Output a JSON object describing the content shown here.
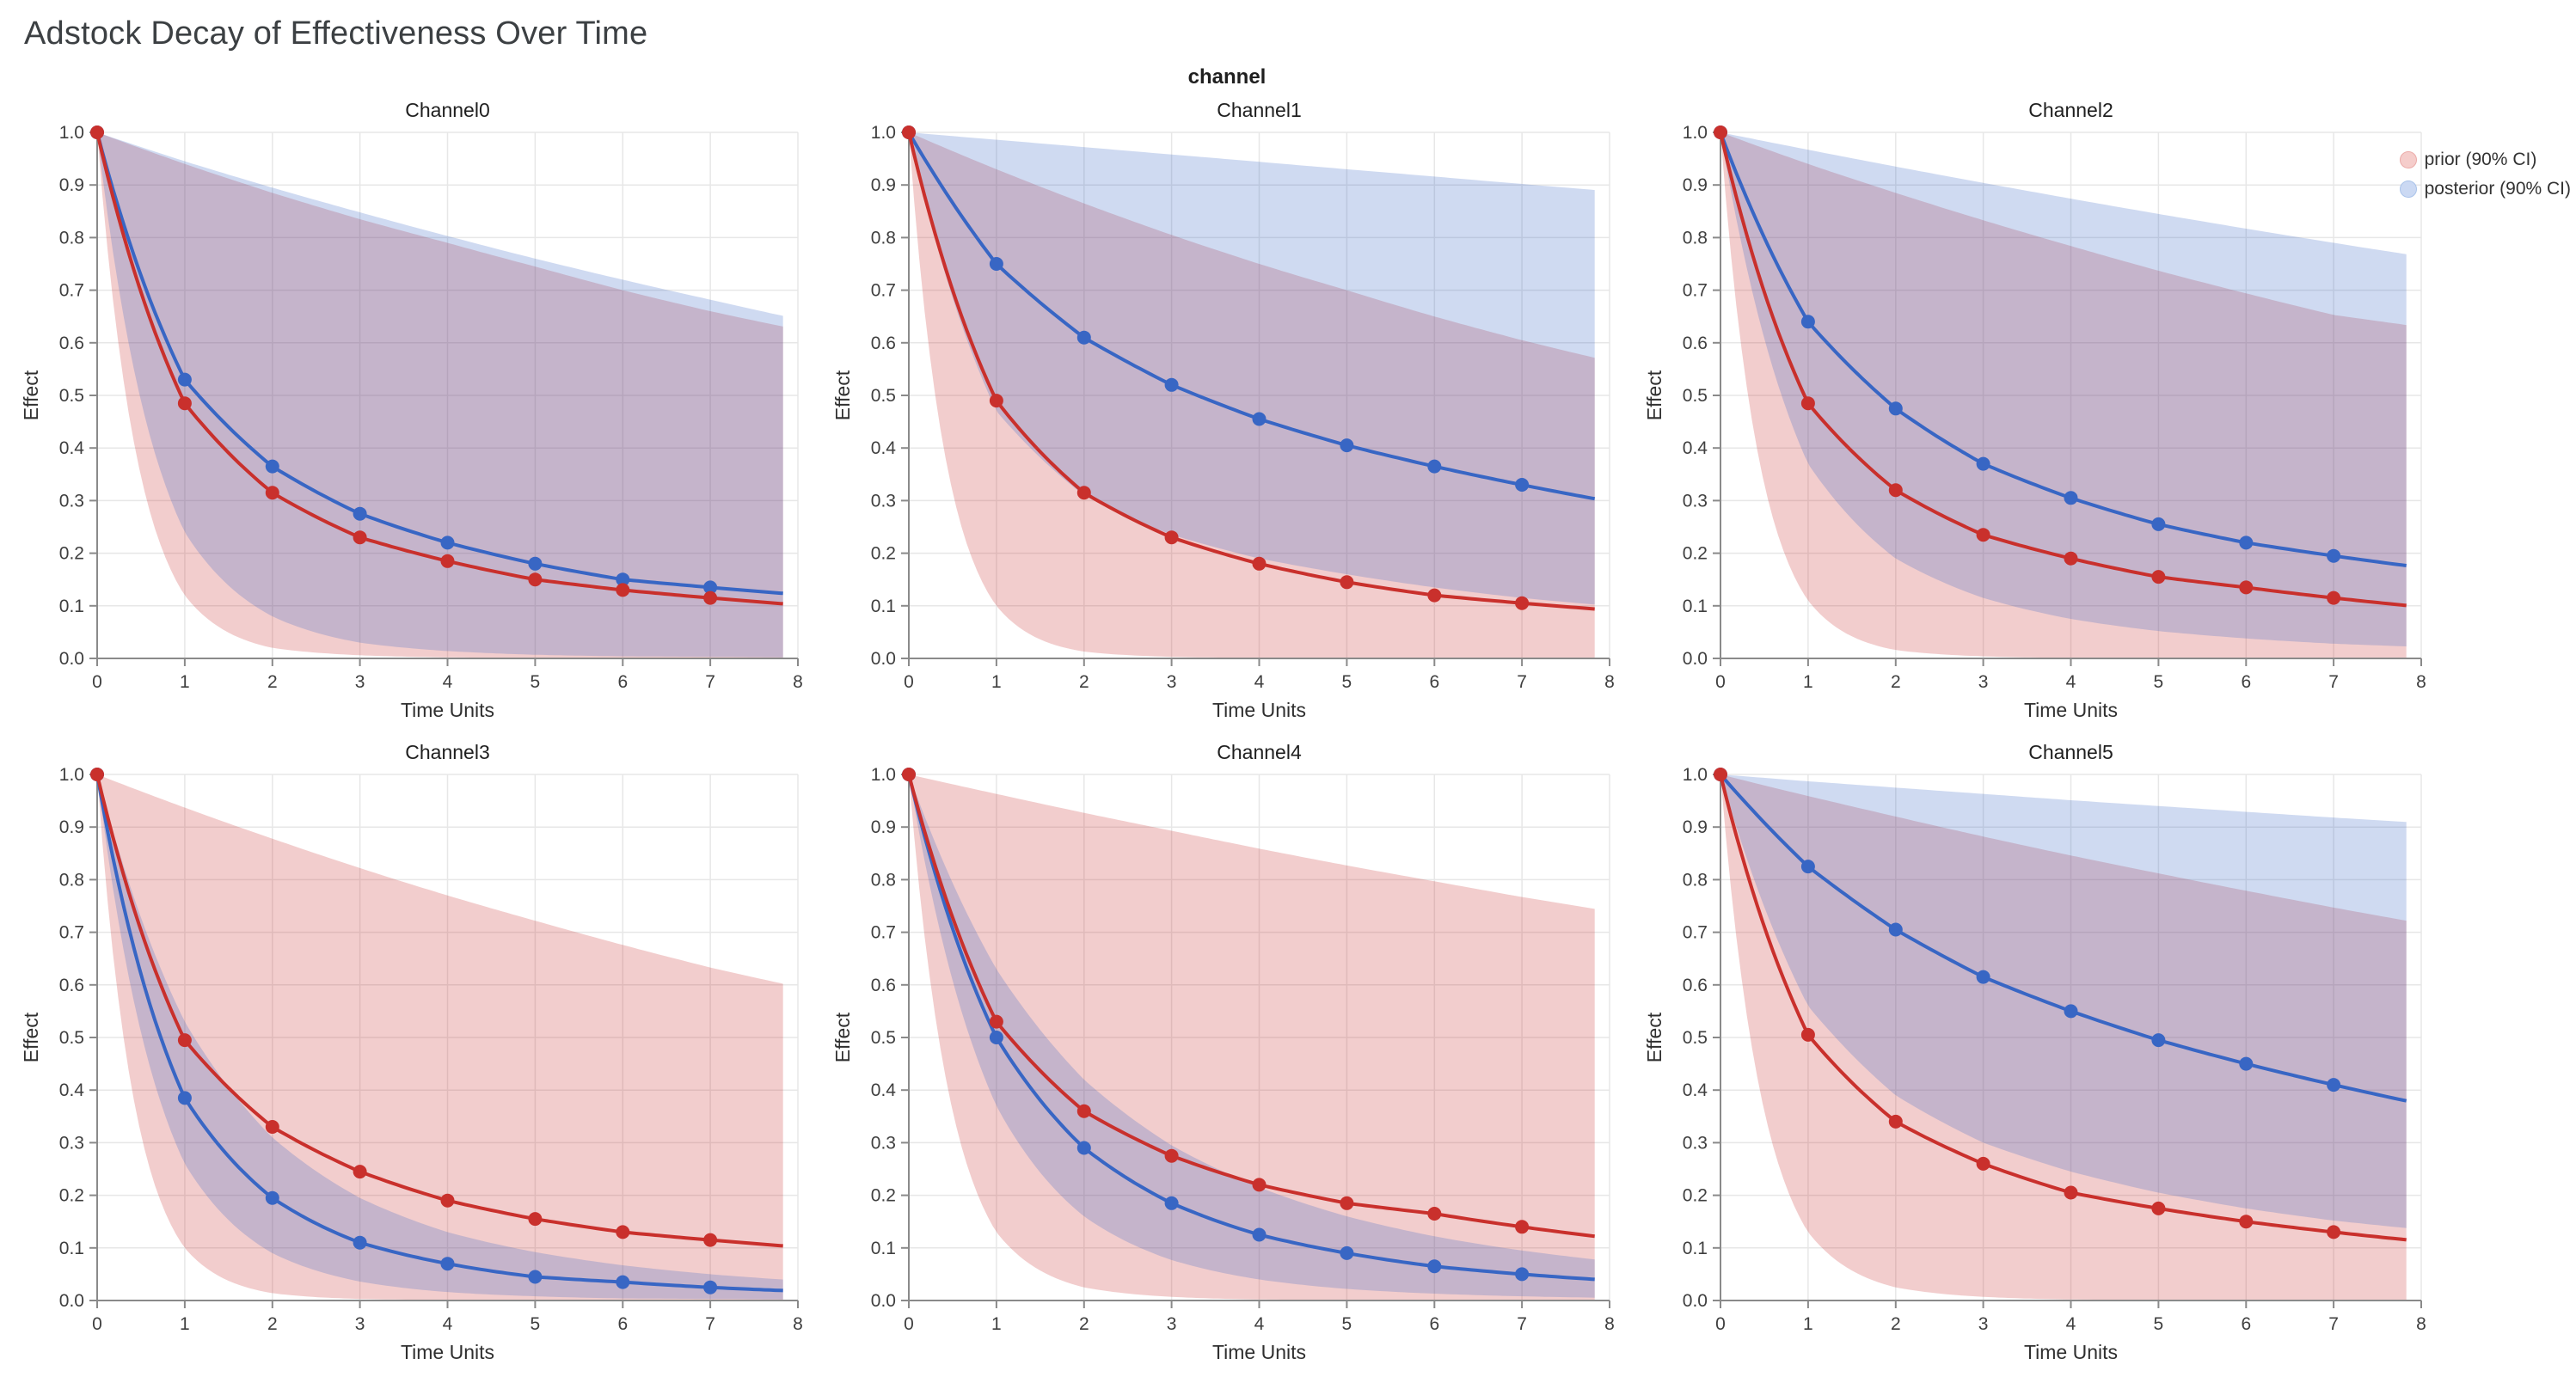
{
  "page_title": "Adstock Decay of Effectiveness Over Time",
  "facet_field_label": "channel",
  "legend": {
    "position": "top-right",
    "items": [
      {
        "id": "prior",
        "label": "prior (90% CI)",
        "swatch_color": "#F5CDCB",
        "swatch_border": "#EBABA8"
      },
      {
        "id": "posterior",
        "label": "posterior (90% CI)",
        "swatch_color": "#CBD9F3",
        "swatch_border": "#A9C3EA"
      }
    ]
  },
  "chart_data": {
    "type": "line",
    "title": "Adstock Decay of Effectiveness Over Time",
    "facet_field": "channel",
    "legend_entries": [
      "prior (90% CI)",
      "posterior (90% CI)"
    ],
    "legend_position": "top-right",
    "grid": true,
    "xlabel": "Time Units",
    "ylabel": "Effect",
    "xlim": [
      0,
      8
    ],
    "ylim": [
      0,
      1
    ],
    "x_ticks": [
      0,
      1,
      2,
      3,
      4,
      5,
      6,
      7,
      8
    ],
    "y_ticks": [
      0,
      0.1,
      0.2,
      0.3,
      0.4,
      0.5,
      0.6,
      0.7,
      0.8,
      0.9,
      1
    ],
    "x": [
      0,
      1,
      2,
      3,
      4,
      5,
      6,
      7
    ],
    "band_x": [
      0,
      1,
      2,
      3,
      4,
      5,
      6,
      7,
      8
    ],
    "x_end": 7.83,
    "colors": {
      "prior": "#C9302C",
      "posterior": "#3866C4",
      "band_opacity": 0.24,
      "grid": "#E7E7E7",
      "axis": "#8A8A8A",
      "tick_text": "#3F3F3F",
      "axis_title_text": "#2F2F2F",
      "facet_title": "#1F1F1F",
      "page_title": "#3C4043"
    },
    "facets": [
      {
        "title": "Channel0",
        "prior": {
          "mean": [
            1,
            0.485,
            0.315,
            0.23,
            0.185,
            0.15,
            0.13,
            0.115
          ],
          "ci_lower": [
            1,
            0.12,
            0.02,
            0.006,
            0.002,
            0.001,
            0.001,
            0.001,
            0.001
          ],
          "ci_upper": [
            1,
            0.94,
            0.885,
            0.835,
            0.79,
            0.745,
            0.7,
            0.66,
            0.625
          ]
        },
        "posterior": {
          "mean": [
            1,
            0.53,
            0.365,
            0.275,
            0.22,
            0.18,
            0.15,
            0.135
          ],
          "ci_lower": [
            1,
            0.24,
            0.08,
            0.03,
            0.014,
            0.007,
            0.004,
            0.003,
            0.002
          ],
          "ci_upper": [
            1,
            0.945,
            0.895,
            0.848,
            0.803,
            0.76,
            0.72,
            0.682,
            0.645
          ]
        }
      },
      {
        "title": "Channel1",
        "prior": {
          "mean": [
            1,
            0.49,
            0.315,
            0.23,
            0.18,
            0.145,
            0.12,
            0.105
          ],
          "ci_lower": [
            1,
            0.1,
            0.013,
            0.003,
            0.001,
            0.001,
            0.001,
            0.001,
            0.001
          ],
          "ci_upper": [
            1,
            0.93,
            0.865,
            0.805,
            0.75,
            0.7,
            0.65,
            0.605,
            0.565
          ]
        },
        "posterior": {
          "mean": [
            1,
            0.75,
            0.61,
            0.52,
            0.455,
            0.405,
            0.365,
            0.33
          ],
          "ci_lower": [
            1,
            0.47,
            0.31,
            0.235,
            0.19,
            0.16,
            0.135,
            0.115,
            0.1
          ],
          "ci_upper": [
            1,
            0.986,
            0.972,
            0.958,
            0.944,
            0.93,
            0.916,
            0.902,
            0.888
          ]
        }
      },
      {
        "title": "Channel2",
        "prior": {
          "mean": [
            1,
            0.485,
            0.32,
            0.235,
            0.19,
            0.155,
            0.135,
            0.115
          ],
          "ci_lower": [
            1,
            0.11,
            0.016,
            0.004,
            0.001,
            0.001,
            0.001,
            0.001,
            0.001
          ],
          "ci_upper": [
            1,
            0.94,
            0.885,
            0.833,
            0.784,
            0.737,
            0.694,
            0.653,
            0.63
          ]
        },
        "posterior": {
          "mean": [
            1,
            0.64,
            0.475,
            0.37,
            0.305,
            0.255,
            0.22,
            0.195
          ],
          "ci_lower": [
            1,
            0.37,
            0.19,
            0.115,
            0.075,
            0.052,
            0.038,
            0.028,
            0.022
          ],
          "ci_upper": [
            1,
            0.967,
            0.935,
            0.904,
            0.874,
            0.845,
            0.817,
            0.79,
            0.764
          ]
        }
      },
      {
        "title": "Channel3",
        "prior": {
          "mean": [
            1,
            0.495,
            0.33,
            0.245,
            0.19,
            0.155,
            0.13,
            0.115
          ],
          "ci_lower": [
            1,
            0.1,
            0.014,
            0.003,
            0.001,
            0.001,
            0.001,
            0.001,
            0.001
          ],
          "ci_upper": [
            1,
            0.937,
            0.878,
            0.822,
            0.77,
            0.722,
            0.676,
            0.633,
            0.596
          ]
        },
        "posterior": {
          "mean": [
            1,
            0.385,
            0.195,
            0.11,
            0.07,
            0.045,
            0.035,
            0.025
          ],
          "ci_lower": [
            1,
            0.26,
            0.09,
            0.036,
            0.016,
            0.008,
            0.004,
            0.003,
            0.002
          ],
          "ci_upper": [
            1,
            0.53,
            0.31,
            0.195,
            0.13,
            0.092,
            0.067,
            0.05,
            0.038
          ]
        }
      },
      {
        "title": "Channel4",
        "prior": {
          "mean": [
            1,
            0.53,
            0.36,
            0.275,
            0.22,
            0.185,
            0.165,
            0.14
          ],
          "ci_lower": [
            1,
            0.13,
            0.025,
            0.007,
            0.002,
            0.001,
            0.001,
            0.001,
            0.001
          ],
          "ci_upper": [
            1,
            0.963,
            0.927,
            0.893,
            0.859,
            0.827,
            0.797,
            0.767,
            0.74
          ]
        },
        "posterior": {
          "mean": [
            1,
            0.5,
            0.29,
            0.185,
            0.125,
            0.09,
            0.065,
            0.05
          ],
          "ci_lower": [
            1,
            0.37,
            0.16,
            0.077,
            0.04,
            0.022,
            0.013,
            0.008,
            0.005
          ],
          "ci_upper": [
            1,
            0.63,
            0.42,
            0.295,
            0.215,
            0.16,
            0.122,
            0.095,
            0.075
          ]
        }
      },
      {
        "title": "Channel5",
        "prior": {
          "mean": [
            1,
            0.505,
            0.34,
            0.26,
            0.205,
            0.175,
            0.15,
            0.13
          ],
          "ci_lower": [
            1,
            0.13,
            0.025,
            0.007,
            0.002,
            0.001,
            0.001,
            0.001,
            0.001
          ],
          "ci_upper": [
            1,
            0.959,
            0.92,
            0.882,
            0.846,
            0.812,
            0.779,
            0.747,
            0.717
          ]
        },
        "posterior": {
          "mean": [
            1,
            0.825,
            0.705,
            0.615,
            0.55,
            0.495,
            0.45,
            0.41
          ],
          "ci_lower": [
            1,
            0.56,
            0.39,
            0.3,
            0.245,
            0.205,
            0.175,
            0.152,
            0.135
          ],
          "ci_upper": [
            1,
            0.987,
            0.975,
            0.963,
            0.951,
            0.94,
            0.929,
            0.918,
            0.908
          ]
        }
      }
    ]
  }
}
